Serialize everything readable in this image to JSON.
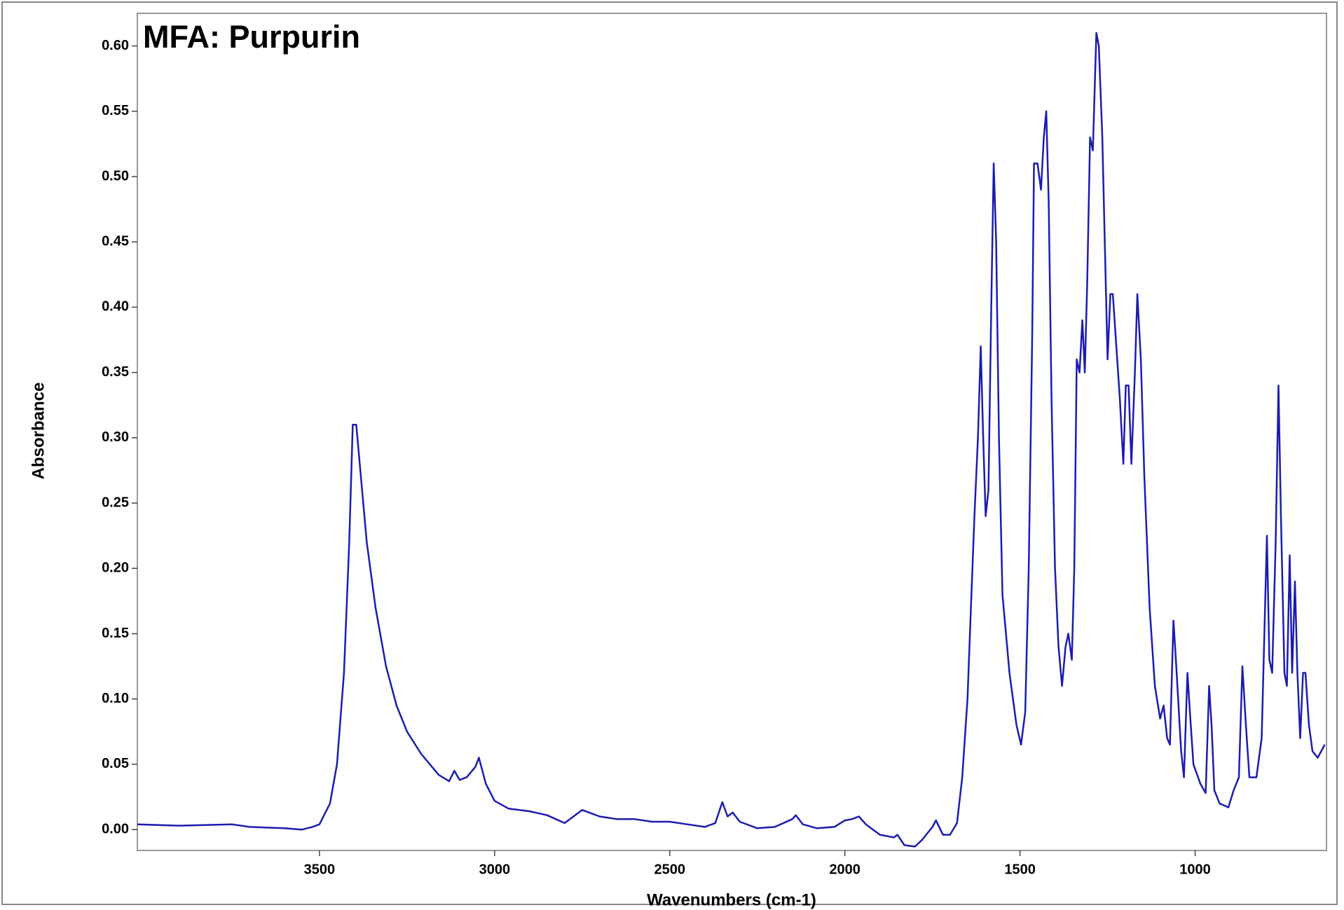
{
  "chart_data": {
    "type": "line",
    "title": "MFA: Purpurin",
    "xlabel": "Wavenumbers (cm-1)",
    "ylabel": "Absorbance",
    "xlim": [
      4020,
      625
    ],
    "ylim": [
      -0.016,
      0.625
    ],
    "xticks": [
      3500,
      3000,
      2500,
      2000,
      1500,
      1000
    ],
    "yticks": [
      {
        "value": 0,
        "label": "0.00"
      },
      {
        "value": 0.05,
        "label": "0.05"
      },
      {
        "value": 0.1,
        "label": "0.10"
      },
      {
        "value": 0.15,
        "label": "0.15"
      },
      {
        "value": 0.2,
        "label": "0.20"
      },
      {
        "value": 0.25,
        "label": "0.25"
      },
      {
        "value": 0.3,
        "label": "0.30"
      },
      {
        "value": 0.35,
        "label": "0.35"
      },
      {
        "value": 0.4,
        "label": "0.40"
      },
      {
        "value": 0.45,
        "label": "0.45"
      },
      {
        "value": 0.5,
        "label": "0.50"
      },
      {
        "value": 0.55,
        "label": "0.55"
      },
      {
        "value": 0.6,
        "label": "0.60"
      }
    ],
    "x": [
      4020,
      3900,
      3750,
      3700,
      3600,
      3550,
      3520,
      3500,
      3470,
      3450,
      3430,
      3415,
      3405,
      3395,
      3385,
      3365,
      3340,
      3310,
      3280,
      3250,
      3210,
      3160,
      3130,
      3115,
      3100,
      3080,
      3055,
      3045,
      3025,
      3000,
      2960,
      2900,
      2850,
      2800,
      2750,
      2700,
      2650,
      2600,
      2550,
      2500,
      2450,
      2400,
      2370,
      2350,
      2335,
      2320,
      2300,
      2250,
      2200,
      2150,
      2140,
      2120,
      2080,
      2030,
      2000,
      1980,
      1960,
      1940,
      1900,
      1860,
      1850,
      1830,
      1800,
      1780,
      1750,
      1740,
      1720,
      1700,
      1680,
      1665,
      1650,
      1640,
      1630,
      1620,
      1612,
      1605,
      1598,
      1590,
      1582,
      1575,
      1568,
      1560,
      1550,
      1530,
      1510,
      1497,
      1485,
      1475,
      1465,
      1460,
      1450,
      1440,
      1432,
      1425,
      1418,
      1410,
      1400,
      1390,
      1380,
      1370,
      1362,
      1352,
      1345,
      1338,
      1330,
      1322,
      1315,
      1308,
      1300,
      1292,
      1282,
      1275,
      1265,
      1258,
      1250,
      1242,
      1235,
      1225,
      1215,
      1205,
      1198,
      1190,
      1182,
      1172,
      1165,
      1155,
      1145,
      1130,
      1115,
      1100,
      1090,
      1080,
      1072,
      1062,
      1055,
      1040,
      1032,
      1022,
      1015,
      1005,
      985,
      970,
      960,
      953,
      945,
      930,
      905,
      890,
      875,
      865,
      855,
      845,
      825,
      810,
      795,
      788,
      780,
      770,
      762,
      755,
      745,
      738,
      730,
      723,
      715,
      708,
      700,
      692,
      685,
      675,
      665,
      650,
      630
    ],
    "series": [
      {
        "name": "Purpurin",
        "color": "#1c1cb0",
        "values": [
          0.004,
          0.003,
          0.004,
          0.002,
          0.001,
          0.0,
          0.002,
          0.004,
          0.02,
          0.05,
          0.12,
          0.22,
          0.31,
          0.31,
          0.28,
          0.22,
          0.17,
          0.125,
          0.095,
          0.075,
          0.058,
          0.042,
          0.037,
          0.045,
          0.038,
          0.04,
          0.048,
          0.055,
          0.035,
          0.022,
          0.016,
          0.014,
          0.011,
          0.005,
          0.015,
          0.01,
          0.008,
          0.008,
          0.006,
          0.006,
          0.004,
          0.002,
          0.005,
          0.021,
          0.01,
          0.013,
          0.006,
          0.001,
          0.002,
          0.008,
          0.011,
          0.004,
          0.001,
          0.002,
          0.007,
          0.008,
          0.01,
          0.004,
          -0.004,
          -0.006,
          -0.004,
          -0.012,
          -0.013,
          -0.008,
          0.002,
          0.007,
          -0.004,
          -0.004,
          0.005,
          0.04,
          0.1,
          0.17,
          0.24,
          0.3,
          0.37,
          0.3,
          0.24,
          0.26,
          0.4,
          0.51,
          0.45,
          0.3,
          0.18,
          0.12,
          0.08,
          0.065,
          0.09,
          0.2,
          0.38,
          0.51,
          0.51,
          0.49,
          0.53,
          0.55,
          0.48,
          0.33,
          0.2,
          0.14,
          0.11,
          0.14,
          0.15,
          0.13,
          0.2,
          0.36,
          0.35,
          0.39,
          0.35,
          0.42,
          0.53,
          0.52,
          0.61,
          0.6,
          0.53,
          0.45,
          0.36,
          0.41,
          0.41,
          0.37,
          0.33,
          0.28,
          0.34,
          0.34,
          0.28,
          0.35,
          0.41,
          0.36,
          0.27,
          0.17,
          0.11,
          0.085,
          0.095,
          0.07,
          0.065,
          0.16,
          0.13,
          0.06,
          0.04,
          0.12,
          0.09,
          0.05,
          0.035,
          0.028,
          0.11,
          0.08,
          0.03,
          0.02,
          0.017,
          0.03,
          0.04,
          0.125,
          0.08,
          0.04,
          0.04,
          0.07,
          0.225,
          0.13,
          0.12,
          0.22,
          0.34,
          0.24,
          0.12,
          0.11,
          0.21,
          0.12,
          0.19,
          0.12,
          0.07,
          0.12,
          0.12,
          0.08,
          0.06,
          0.055,
          0.065
        ]
      }
    ]
  }
}
